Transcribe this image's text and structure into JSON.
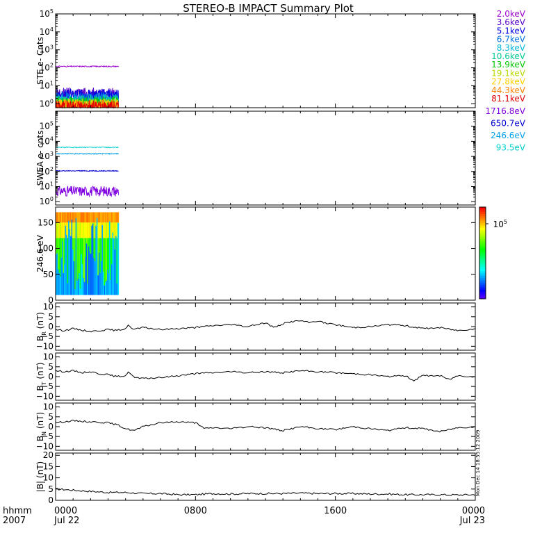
{
  "title": "STEREO-B IMPACT Summary Plot",
  "time_axis": {
    "row_label": "hhmm",
    "year": "2007",
    "ticks": [
      {
        "hour": 0,
        "time": "0000",
        "date": "Jul 22"
      },
      {
        "hour": 8,
        "time": "0800",
        "date": ""
      },
      {
        "hour": 16,
        "time": "1600",
        "date": ""
      },
      {
        "hour": 24,
        "time": "0000",
        "date": "Jul 23"
      }
    ],
    "range_hours": [
      0,
      24
    ]
  },
  "side_stamp": "Mon Dec 14 18:55:12 2009",
  "chart_data": [
    {
      "id": "ste",
      "type": "line",
      "ylabel": "STE e- Cnts",
      "yscale": "log",
      "ylim": [
        0.6,
        100000
      ],
      "yticks": [
        1,
        10,
        100,
        1000,
        10000,
        100000
      ],
      "ytick_labels": [
        "10^0",
        "10^1",
        "10^2",
        "10^3",
        "10^4",
        "10^5"
      ],
      "data_end_hour": 3.6,
      "legend_placement": "right",
      "series": [
        {
          "name": "2.0keV",
          "color": "#9b00d0",
          "level": 120
        },
        {
          "name": "3.6keV",
          "color": "#5a00c8",
          "level": 3.6
        },
        {
          "name": "5.1keV",
          "color": "#0000e0",
          "level": 3.0
        },
        {
          "name": "6.7keV",
          "color": "#0070e0",
          "level": 2.0
        },
        {
          "name": "8.3keV",
          "color": "#00b8d8",
          "level": 1.6
        },
        {
          "name": "10.6keV",
          "color": "#00c890",
          "level": 1.3
        },
        {
          "name": "13.9keV",
          "color": "#00c800",
          "level": 1.1
        },
        {
          "name": "19.1keV",
          "color": "#b8d800",
          "level": 0.9
        },
        {
          "name": "27.8keV",
          "color": "#ffd000",
          "level": 0.8
        },
        {
          "name": "44.3keV",
          "color": "#ff8000",
          "level": 0.75
        },
        {
          "name": "81.1keV",
          "color": "#e00000",
          "level": 0.7
        }
      ]
    },
    {
      "id": "swea",
      "type": "line",
      "ylabel": "SWEA e- cnts",
      "yscale": "log",
      "ylim": [
        0.6,
        1000000
      ],
      "yticks": [
        1,
        10,
        100,
        1000,
        10000,
        100000
      ],
      "ytick_labels": [
        "10^0",
        "10^1",
        "10^2",
        "10^3",
        "10^4",
        "10^5"
      ],
      "data_end_hour": 3.6,
      "legend_placement": "right",
      "series": [
        {
          "name": "1716.8eV",
          "color": "#8000e0",
          "level": 5
        },
        {
          "name": "650.7eV",
          "color": "#0000d0",
          "level": 110
        },
        {
          "name": "246.6eV",
          "color": "#00a0e8",
          "level": 1500
        },
        {
          "name": "93.5eV",
          "color": "#00d0d0",
          "level": 4000
        }
      ]
    },
    {
      "id": "pad",
      "type": "heatmap",
      "ylabel": "246.6 eV",
      "ylim": [
        0,
        180
      ],
      "yticks": [
        0,
        50,
        100,
        150
      ],
      "ytick_labels": [
        "0",
        "50",
        "100",
        "150"
      ],
      "data_end_hour": 3.6,
      "colorbar_label": "10^5"
    },
    {
      "id": "br",
      "type": "line",
      "ylabel": "B_R (nT)",
      "ylim": [
        -12,
        12
      ],
      "yticks": [
        -10,
        -5,
        0,
        5,
        10
      ],
      "ytick_labels": [
        "−10",
        "−5",
        "0",
        "5",
        "10"
      ],
      "series": [
        {
          "color": "#000000",
          "points": [
            [
              0,
              -1.5
            ],
            [
              0.5,
              -2
            ],
            [
              1,
              -1
            ],
            [
              1.5,
              -1.8
            ],
            [
              2,
              -2.5
            ],
            [
              2.5,
              -2
            ],
            [
              3,
              -1.5
            ],
            [
              3.5,
              -2
            ],
            [
              4,
              -1
            ],
            [
              4.2,
              1
            ],
            [
              4.4,
              -1.5
            ],
            [
              5,
              -0.5
            ],
            [
              6,
              -1.5
            ],
            [
              7,
              -1
            ],
            [
              8,
              -0.5
            ],
            [
              9,
              0.5
            ],
            [
              10,
              1
            ],
            [
              11,
              0
            ],
            [
              12,
              2
            ],
            [
              12.5,
              -0.5
            ],
            [
              13,
              1.5
            ],
            [
              13.5,
              2.5
            ],
            [
              14,
              3
            ],
            [
              14.5,
              2
            ],
            [
              15,
              3
            ],
            [
              15.5,
              1.5
            ],
            [
              16,
              1
            ],
            [
              17,
              -0.5
            ],
            [
              18,
              0
            ],
            [
              19,
              1
            ],
            [
              20,
              0.5
            ],
            [
              21,
              -1
            ],
            [
              22,
              -0.5
            ],
            [
              23,
              -2
            ],
            [
              24,
              -1
            ]
          ]
        }
      ]
    },
    {
      "id": "bt",
      "type": "line",
      "ylabel": "B_T (nT)",
      "ylim": [
        -12,
        12
      ],
      "yticks": [
        -10,
        -5,
        0,
        5,
        10
      ],
      "ytick_labels": [
        "−10",
        "−5",
        "0",
        "5",
        "10"
      ],
      "series": [
        {
          "color": "#000000",
          "points": [
            [
              0,
              3
            ],
            [
              0.5,
              2.5
            ],
            [
              1,
              3
            ],
            [
              1.5,
              2
            ],
            [
              2,
              2.5
            ],
            [
              2.5,
              1.5
            ],
            [
              3,
              1
            ],
            [
              3.5,
              0
            ],
            [
              4,
              0.5
            ],
            [
              4.2,
              2.5
            ],
            [
              4.5,
              -0.5
            ],
            [
              5,
              -1
            ],
            [
              6,
              -0.5
            ],
            [
              7,
              0.5
            ],
            [
              8,
              1.5
            ],
            [
              9,
              2
            ],
            [
              10,
              2.5
            ],
            [
              11,
              2
            ],
            [
              12,
              2.5
            ],
            [
              13,
              2
            ],
            [
              14,
              3
            ],
            [
              15,
              2.5
            ],
            [
              16,
              2
            ],
            [
              17,
              1.5
            ],
            [
              18,
              1
            ],
            [
              19,
              0
            ],
            [
              20,
              0.5
            ],
            [
              20.5,
              -2
            ],
            [
              21,
              0.5
            ],
            [
              22,
              0.5
            ],
            [
              22.5,
              -1.5
            ],
            [
              23,
              0.5
            ],
            [
              24,
              0
            ]
          ]
        }
      ]
    },
    {
      "id": "bn",
      "type": "line",
      "ylabel": "B_N (nT)",
      "ylim": [
        -12,
        12
      ],
      "yticks": [
        -10,
        -5,
        0,
        5,
        10
      ],
      "ytick_labels": [
        "−10",
        "−5",
        "0",
        "5",
        "10"
      ],
      "series": [
        {
          "color": "#000000",
          "points": [
            [
              0,
              2
            ],
            [
              1,
              3
            ],
            [
              2,
              2.5
            ],
            [
              3,
              2
            ],
            [
              3.5,
              1
            ],
            [
              4,
              -1
            ],
            [
              4.5,
              -2
            ],
            [
              5,
              0
            ],
            [
              6,
              2
            ],
            [
              7,
              2.5
            ],
            [
              8,
              2
            ],
            [
              8.5,
              -1
            ],
            [
              9,
              -0.5
            ],
            [
              10,
              -1
            ],
            [
              11,
              0
            ],
            [
              12,
              -0.5
            ],
            [
              13,
              -2
            ],
            [
              14,
              0
            ],
            [
              15,
              -1
            ],
            [
              16,
              -1.5
            ],
            [
              17,
              0
            ],
            [
              18,
              -1
            ],
            [
              19,
              -2
            ],
            [
              20,
              -0.5
            ],
            [
              21,
              -1
            ],
            [
              22,
              -2.5
            ],
            [
              23,
              -0.5
            ],
            [
              24,
              0
            ]
          ]
        }
      ]
    },
    {
      "id": "bmag",
      "type": "line",
      "ylabel": "|B| (nT)",
      "ylim": [
        0,
        21
      ],
      "yticks": [
        0,
        5,
        10,
        15,
        20
      ],
      "ytick_labels": [
        "0",
        "5",
        "10",
        "15",
        "20"
      ],
      "series": [
        {
          "color": "#000000",
          "points": [
            [
              0,
              5
            ],
            [
              0.5,
              4.8
            ],
            [
              1,
              4.5
            ],
            [
              2,
              4
            ],
            [
              3,
              3.5
            ],
            [
              4,
              3.5
            ],
            [
              5,
              3
            ],
            [
              6,
              3
            ],
            [
              7,
              2.5
            ],
            [
              8,
              2.5
            ],
            [
              9,
              3
            ],
            [
              10,
              2.8
            ],
            [
              11,
              3
            ],
            [
              12,
              3
            ],
            [
              13,
              3
            ],
            [
              14,
              3.2
            ],
            [
              15,
              3
            ],
            [
              16,
              3
            ],
            [
              17,
              3
            ],
            [
              18,
              2.8
            ],
            [
              19,
              2.8
            ],
            [
              20,
              2.5
            ],
            [
              21,
              2.5
            ],
            [
              22,
              2.5
            ],
            [
              23,
              2.4
            ],
            [
              24,
              2.5
            ]
          ]
        }
      ]
    }
  ]
}
